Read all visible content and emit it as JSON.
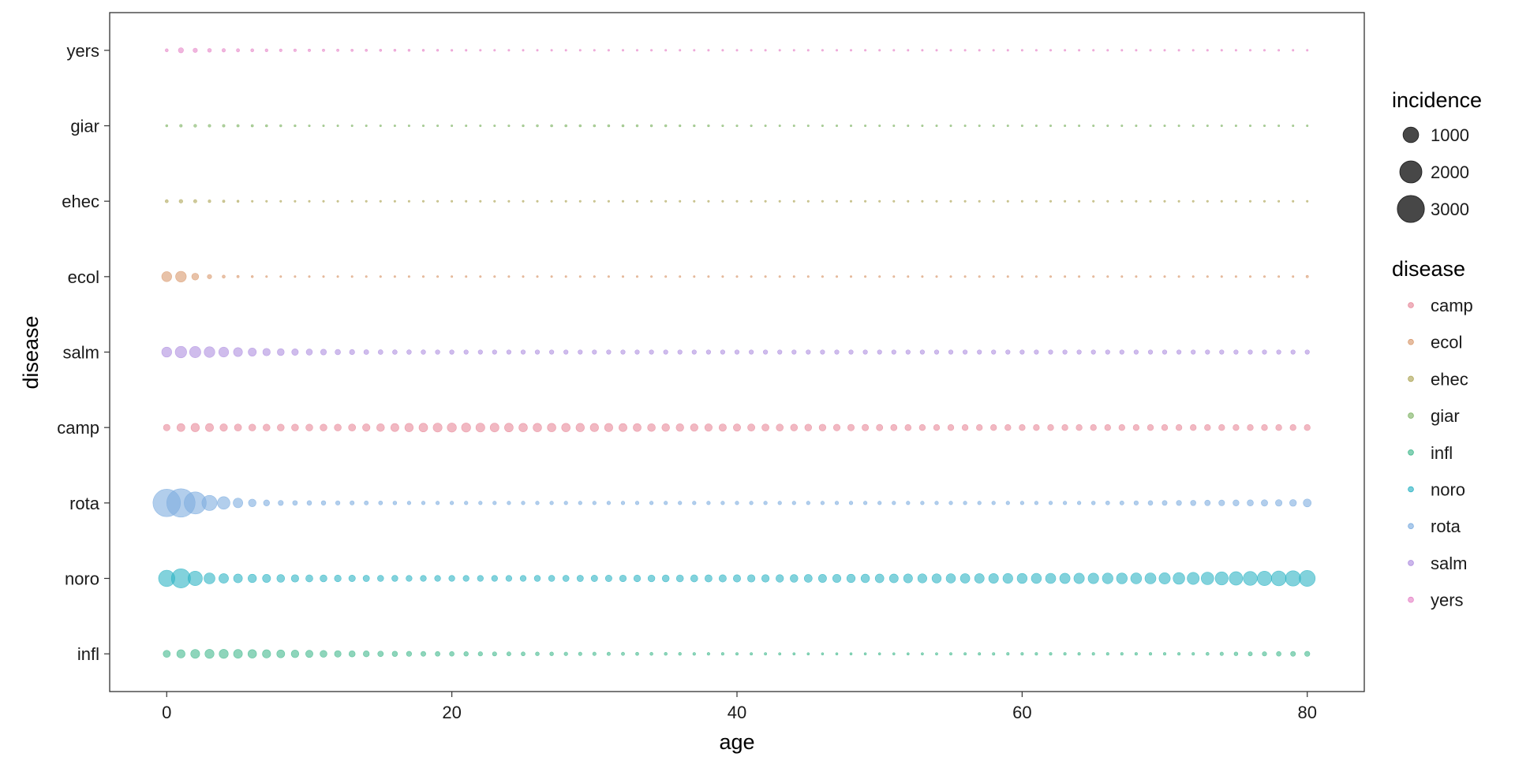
{
  "chart_data": {
    "type": "scatter",
    "xlabel": "age",
    "ylabel": "disease",
    "xlim": [
      -4,
      84
    ],
    "x_ticks": [
      0,
      20,
      40,
      60,
      80
    ],
    "x_tick_labels": [
      "0",
      "20",
      "40",
      "60",
      "80"
    ],
    "grid": false,
    "legend_position": "right",
    "categories": [
      "infl",
      "noro",
      "rota",
      "camp",
      "salm",
      "ecol",
      "ehec",
      "giar",
      "yers"
    ],
    "colors": {
      "camp": "#E7899A",
      "ecol": "#D99A6E",
      "ehec": "#AFA75A",
      "giar": "#82B568",
      "infl": "#43B98D",
      "noro": "#2EB4C4",
      "rota": "#7EAEE0",
      "salm": "#AF8FE0",
      "yers": "#E685C8"
    },
    "size_legend": {
      "title": "incidence",
      "breaks": [
        1000,
        2000,
        3000
      ],
      "labels": [
        "1000",
        "2000",
        "3000"
      ]
    },
    "color_legend": {
      "title": "disease",
      "labels": [
        "camp",
        "ecol",
        "ehec",
        "giar",
        "infl",
        "noro",
        "rota",
        "salm",
        "yers"
      ]
    },
    "ages": [
      0,
      1,
      2,
      3,
      4,
      5,
      6,
      7,
      8,
      9,
      10,
      11,
      12,
      13,
      14,
      15,
      16,
      17,
      18,
      19,
      20,
      21,
      22,
      23,
      24,
      25,
      26,
      27,
      28,
      29,
      30,
      31,
      32,
      33,
      34,
      35,
      36,
      37,
      38,
      39,
      40,
      41,
      42,
      43,
      44,
      45,
      46,
      47,
      48,
      49,
      50,
      51,
      52,
      53,
      54,
      55,
      56,
      57,
      58,
      59,
      60,
      61,
      62,
      63,
      64,
      65,
      66,
      67,
      68,
      69,
      70,
      71,
      72,
      73,
      74,
      75,
      76,
      77,
      78,
      79,
      80
    ],
    "series": [
      {
        "name": "infl",
        "values": [
          210,
          280,
          330,
          340,
          340,
          320,
          300,
          280,
          260,
          240,
          220,
          200,
          180,
          160,
          150,
          130,
          120,
          110,
          100,
          95,
          90,
          85,
          80,
          75,
          70,
          65,
          60,
          58,
          55,
          52,
          50,
          48,
          45,
          42,
          40,
          38,
          36,
          34,
          32,
          30,
          28,
          27,
          26,
          25,
          24,
          23,
          22,
          22,
          22,
          22,
          22,
          22,
          23,
          24,
          25,
          26,
          27,
          28,
          29,
          30,
          30,
          30,
          30,
          30,
          30,
          30,
          30,
          30,
          30,
          30,
          30,
          30,
          30,
          40,
          50,
          60,
          70,
          80,
          90,
          100,
          110
        ]
      },
      {
        "name": "noro",
        "values": [
          1100,
          1500,
          850,
          500,
          380,
          320,
          290,
          270,
          250,
          230,
          210,
          200,
          190,
          180,
          170,
          160,
          155,
          150,
          150,
          150,
          150,
          150,
          150,
          150,
          150,
          150,
          155,
          160,
          165,
          170,
          175,
          180,
          185,
          190,
          195,
          200,
          205,
          210,
          215,
          220,
          225,
          230,
          235,
          240,
          250,
          260,
          270,
          280,
          290,
          300,
          310,
          320,
          330,
          340,
          350,
          360,
          370,
          380,
          390,
          400,
          410,
          420,
          430,
          440,
          450,
          460,
          470,
          480,
          490,
          500,
          520,
          560,
          600,
          650,
          700,
          750,
          800,
          850,
          900,
          960,
          1050
        ]
      },
      {
        "name": "rota",
        "values": [
          3100,
          3300,
          2000,
          950,
          650,
          380,
          240,
          150,
          110,
          95,
          90,
          85,
          80,
          75,
          70,
          65,
          60,
          55,
          55,
          55,
          55,
          55,
          55,
          55,
          55,
          55,
          55,
          55,
          55,
          55,
          55,
          55,
          55,
          55,
          55,
          55,
          55,
          55,
          55,
          55,
          55,
          55,
          55,
          55,
          55,
          55,
          55,
          55,
          55,
          55,
          55,
          55,
          55,
          55,
          55,
          55,
          55,
          55,
          55,
          55,
          55,
          55,
          55,
          55,
          55,
          60,
          65,
          70,
          80,
          90,
          100,
          110,
          120,
          130,
          140,
          150,
          160,
          170,
          180,
          190,
          260
        ]
      },
      {
        "name": "camp",
        "values": [
          180,
          260,
          290,
          270,
          230,
          210,
          200,
          200,
          200,
          200,
          200,
          200,
          200,
          210,
          230,
          250,
          270,
          290,
          310,
          330,
          345,
          340,
          330,
          320,
          310,
          300,
          300,
          300,
          300,
          290,
          285,
          280,
          270,
          260,
          250,
          245,
          240,
          235,
          230,
          225,
          220,
          215,
          210,
          205,
          200,
          195,
          190,
          185,
          180,
          175,
          170,
          165,
          160,
          155,
          150,
          150,
          150,
          150,
          150,
          150,
          150,
          150,
          150,
          150,
          150,
          150,
          150,
          150,
          150,
          150,
          150,
          150,
          150,
          150,
          150,
          150,
          150,
          150,
          150,
          150,
          150
        ]
      },
      {
        "name": "salm",
        "values": [
          410,
          540,
          520,
          470,
          400,
          330,
          270,
          230,
          200,
          180,
          160,
          140,
          125,
          110,
          100,
          95,
          90,
          88,
          86,
          84,
          82,
          80,
          80,
          80,
          80,
          80,
          80,
          80,
          80,
          80,
          80,
          80,
          80,
          80,
          80,
          80,
          80,
          80,
          80,
          80,
          80,
          80,
          80,
          80,
          80,
          80,
          80,
          80,
          80,
          80,
          80,
          80,
          80,
          80,
          80,
          80,
          80,
          80,
          80,
          80,
          80,
          80,
          80,
          80,
          80,
          80,
          80,
          80,
          80,
          80,
          80,
          80,
          80,
          80,
          80,
          80,
          80,
          80,
          80,
          80,
          80
        ]
      },
      {
        "name": "ecol",
        "values": [
          410,
          470,
          200,
          80,
          40,
          25,
          20,
          15,
          12,
          10,
          10,
          10,
          10,
          10,
          10,
          10,
          10,
          10,
          10,
          10,
          10,
          10,
          10,
          10,
          10,
          10,
          10,
          10,
          10,
          10,
          10,
          10,
          10,
          10,
          10,
          10,
          10,
          10,
          10,
          10,
          10,
          10,
          10,
          10,
          10,
          10,
          10,
          10,
          10,
          10,
          10,
          10,
          10,
          10,
          10,
          10,
          10,
          10,
          10,
          10,
          10,
          10,
          10,
          10,
          10,
          10,
          10,
          10,
          10,
          10,
          10,
          10,
          10,
          10,
          10,
          10,
          10,
          10,
          10,
          10,
          25
        ]
      },
      {
        "name": "ehec",
        "values": [
          40,
          55,
          45,
          30,
          25,
          20,
          8,
          6,
          5,
          5,
          5,
          5,
          5,
          5,
          5,
          5,
          5,
          5,
          5,
          5,
          5,
          5,
          5,
          5,
          5,
          5,
          5,
          5,
          5,
          5,
          5,
          5,
          5,
          5,
          5,
          5,
          5,
          5,
          5,
          5,
          5,
          5,
          5,
          5,
          5,
          5,
          5,
          5,
          5,
          5,
          5,
          5,
          5,
          5,
          5,
          5,
          5,
          5,
          5,
          5,
          5,
          5,
          5,
          5,
          5,
          5,
          5,
          5,
          5,
          5,
          5,
          5,
          5,
          5,
          5,
          5,
          5,
          5,
          5,
          5,
          5
        ]
      },
      {
        "name": "giar",
        "values": [
          20,
          30,
          35,
          30,
          28,
          26,
          24,
          22,
          20,
          18,
          16,
          12,
          10,
          8,
          8,
          8,
          8,
          8,
          8,
          8,
          8,
          10,
          12,
          14,
          16,
          18,
          20,
          22,
          22,
          22,
          22,
          22,
          22,
          20,
          20,
          20,
          18,
          18,
          18,
          16,
          16,
          16,
          14,
          14,
          14,
          12,
          12,
          12,
          12,
          10,
          10,
          10,
          10,
          10,
          10,
          10,
          10,
          10,
          10,
          10,
          10,
          10,
          10,
          10,
          10,
          10,
          10,
          10,
          10,
          10,
          10,
          10,
          10,
          10,
          10,
          10,
          10,
          10,
          10,
          10,
          10
        ]
      },
      {
        "name": "yers",
        "values": [
          40,
          110,
          80,
          60,
          50,
          45,
          40,
          35,
          32,
          30,
          28,
          26,
          25,
          24,
          23,
          22,
          21,
          20,
          19,
          18,
          17,
          16,
          15,
          14,
          13,
          12,
          11,
          10,
          10,
          10,
          10,
          10,
          10,
          10,
          10,
          10,
          10,
          10,
          10,
          10,
          10,
          10,
          10,
          10,
          10,
          10,
          10,
          10,
          10,
          10,
          10,
          10,
          10,
          10,
          10,
          10,
          10,
          10,
          10,
          10,
          10,
          10,
          10,
          10,
          10,
          10,
          10,
          10,
          10,
          10,
          10,
          10,
          10,
          10,
          10,
          10,
          10,
          10,
          10,
          10,
          10
        ]
      }
    ]
  }
}
